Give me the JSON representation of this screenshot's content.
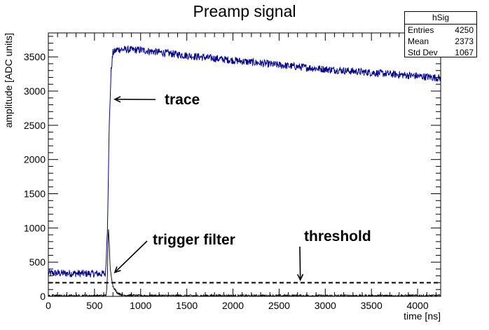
{
  "chart_data": {
    "type": "line",
    "title": "Preamp signal",
    "xlabel": "time [ns]",
    "ylabel": "amplitude [ADC units]",
    "xlim": [
      0,
      4250
    ],
    "ylim": [
      0,
      3850
    ],
    "x_ticks": [
      0,
      500,
      1000,
      1500,
      2000,
      2500,
      3000,
      3500,
      4000
    ],
    "y_ticks": [
      0,
      500,
      1000,
      1500,
      2000,
      2500,
      3000,
      3500
    ],
    "grid": false,
    "series": [
      {
        "color": "#00008b",
        "style": "histogram, noisy",
        "x": [
          0,
          300,
          620,
          640,
          660,
          680,
          700,
          750,
          1000,
          1500,
          2000,
          2500,
          3000,
          3500,
          4000,
          4250
        ],
        "y": [
          340,
          335,
          330,
          1000,
          2500,
          3300,
          3560,
          3610,
          3600,
          3520,
          3450,
          3380,
          3320,
          3270,
          3220,
          3190
        ]
      },
      {
        "color": "#000000",
        "style": "histogram, noisy",
        "x": [
          0,
          600,
          630,
          640,
          650,
          660,
          670,
          700,
          740,
          800,
          1000,
          2000,
          3000,
          4000,
          4250
        ],
        "y": [
          10,
          10,
          30,
          300,
          1050,
          750,
          400,
          150,
          60,
          20,
          10,
          10,
          10,
          10,
          10
        ]
      }
    ],
    "threshold": {
      "y": 200,
      "style": "dashed"
    },
    "annotations": [
      {
        "text": "trace",
        "arrow_to": [
          720,
          2880
        ]
      },
      {
        "text": "trigger filter",
        "arrow_to": [
          720,
          350
        ]
      },
      {
        "text": "threshold",
        "arrow_to": [
          2730,
          240
        ]
      }
    ],
    "stats_box": {
      "name": "hSig",
      "rows": [
        {
          "label": "Entries",
          "value": "4250"
        },
        {
          "label": "Mean",
          "value": "2373"
        },
        {
          "label": "Std Dev",
          "value": "1067"
        }
      ],
      "position": "top-right"
    }
  }
}
